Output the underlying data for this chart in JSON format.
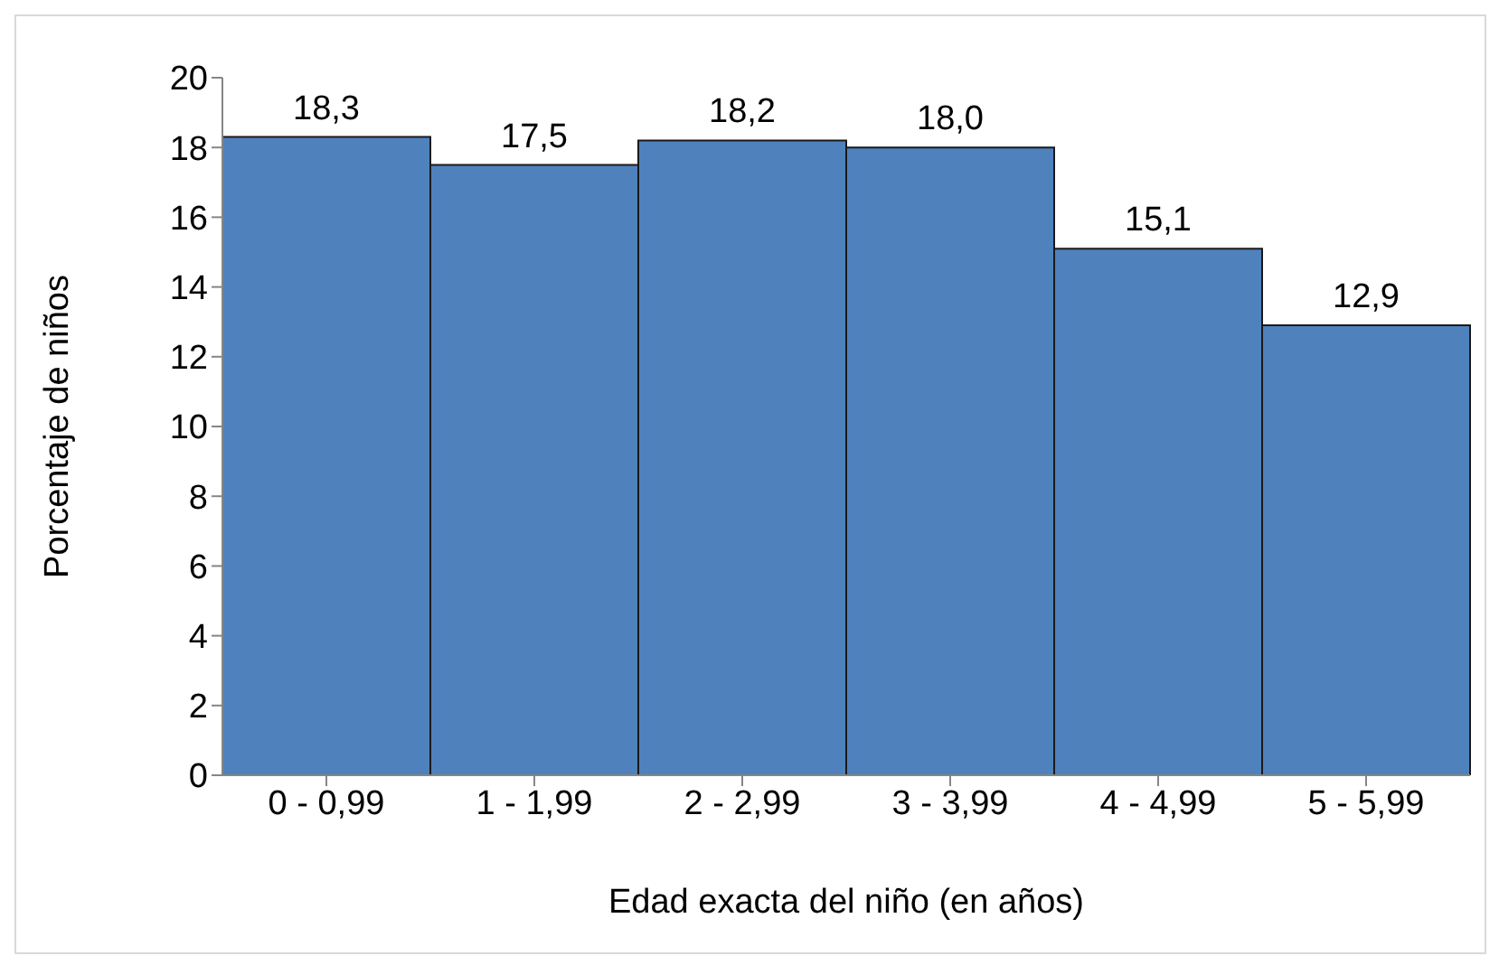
{
  "chart_data": {
    "type": "bar",
    "xlabel": "Edad exacta del niño (en años)",
    "ylabel": "Porcentaje de niños",
    "categories": [
      "0 - 0,99",
      "1 - 1,99",
      "2 - 2,99",
      "3 - 3,99",
      "4 - 4,99",
      "5 - 5,99"
    ],
    "values": [
      18.3,
      17.5,
      18.2,
      18.0,
      15.1,
      12.9
    ],
    "value_labels": [
      "18,3",
      "17,5",
      "18,2",
      "18,0",
      "15,1",
      "12,9"
    ],
    "color": "#4f81bd",
    "ylim": [
      0,
      20
    ],
    "yticks": [
      0,
      2,
      4,
      6,
      8,
      10,
      12,
      14,
      16,
      18,
      20
    ],
    "grid": false,
    "legend": false
  }
}
